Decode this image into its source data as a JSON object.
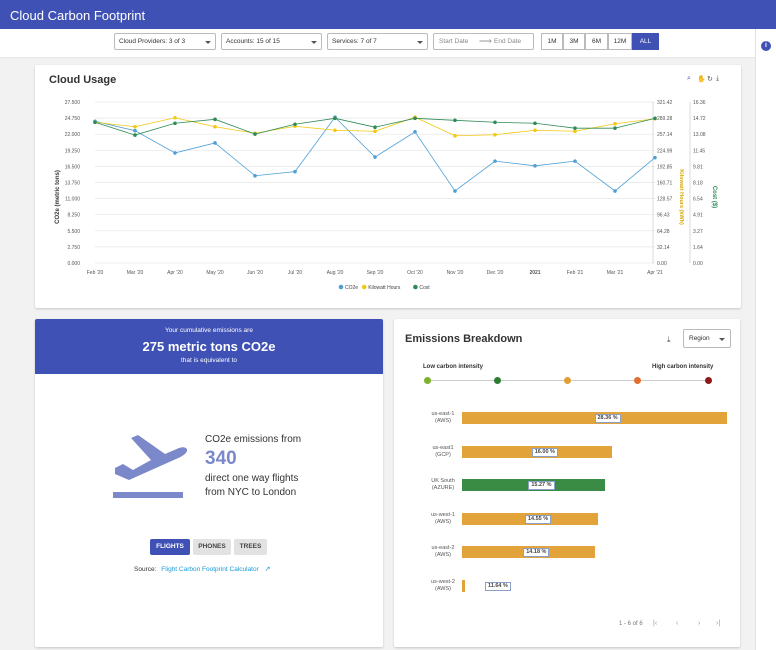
{
  "app": {
    "title": "Cloud Carbon Footprint"
  },
  "filters": {
    "providers": "Cloud Providers: 3 of 3",
    "accounts": "Accounts: 15 of 15",
    "services": "Services: 7 of 7",
    "start_date": "Start Date",
    "end_date": "End Date",
    "ranges": [
      "1M",
      "3M",
      "6M",
      "12M",
      "ALL"
    ],
    "active_range": "ALL"
  },
  "cloud_usage": {
    "title": "Cloud Usage",
    "toolbar_icons": [
      "zoom-icon",
      "pan-icon",
      "reset-icon",
      "download-icon"
    ]
  },
  "chart_data": {
    "type": "line",
    "x": [
      "Feb '20",
      "Mar '20",
      "Apr '20",
      "May '20",
      "Jun '20",
      "Jul '20",
      "Aug '20",
      "Sep '20",
      "Oct '20",
      "Nov '20",
      "Dec '20",
      "2021",
      "Feb '21",
      "Mar '21",
      "Apr '21"
    ],
    "series": [
      {
        "name": "CO2e",
        "color": "#4e9fd6",
        "axis": "left",
        "values": [
          24.2,
          22.6,
          18.8,
          20.5,
          14.9,
          15.6,
          24.9,
          18.1,
          22.4,
          12.3,
          17.4,
          16.6,
          17.4,
          12.3,
          18.0
        ]
      },
      {
        "name": "Kilowatt Hours",
        "color": "#f2c811",
        "axis": "right1",
        "values": [
          281,
          272,
          290,
          272,
          259,
          273,
          265,
          263,
          291,
          254,
          256,
          265,
          263,
          278,
          288
        ]
      },
      {
        "name": "Cost",
        "color": "#2e8b57",
        "axis": "right2",
        "values": [
          14.3,
          13.0,
          14.2,
          14.6,
          13.1,
          14.1,
          14.7,
          13.8,
          14.7,
          14.5,
          14.3,
          14.2,
          13.7,
          13.7,
          14.7
        ]
      }
    ],
    "ylabel": "CO2e (metric tons)",
    "y2label": "Kilowatt Hours (kWh)",
    "y3label": "Cost ($)",
    "yticks": [
      "0.000",
      "2.750",
      "5.500",
      "8.250",
      "11.000",
      "13.750",
      "16.500",
      "19.250",
      "22.000",
      "24.750",
      "27.500"
    ],
    "y2ticks": [
      "0.00",
      "32.14",
      "64.28",
      "96.43",
      "128.57",
      "160.71",
      "192.85",
      "224.99",
      "257.14",
      "289.28",
      "321.42"
    ],
    "y3ticks": [
      "0.00",
      "1.64",
      "3.27",
      "4.91",
      "6.54",
      "8.18",
      "9.81",
      "11.45",
      "13.08",
      "14.72",
      "16.36"
    ],
    "ylim": [
      0,
      27.5
    ],
    "y2lim": [
      0,
      321.42
    ],
    "y3lim": [
      0,
      16.36
    ],
    "grid": true,
    "legend": "bottom"
  },
  "emissions": {
    "line1": "Your cumulative emissions are",
    "amount": "275 metric tons CO2e",
    "line2": "that is equivalent to",
    "equiv_prefix": "CO2e emissions from",
    "equiv_number": "340",
    "equiv_desc1": "direct one way flights",
    "equiv_desc2": "from NYC to London",
    "tabs": [
      "FLIGHTS",
      "PHONES",
      "TREES"
    ],
    "active_tab": "FLIGHTS",
    "source_label": "Source:",
    "source_link": "Flight Carbon Footprint Calculator",
    "icon": "airplane-takeoff-icon"
  },
  "breakdown": {
    "title": "Emissions Breakdown",
    "select_value": "Region",
    "low_label": "Low carbon intensity",
    "high_label": "High carbon intensity",
    "scale_colors": [
      "#7cb32b",
      "#2e7d32",
      "#e0a030",
      "#e07030",
      "#8b1a1a"
    ],
    "rows": [
      {
        "label1": "us-east-1",
        "label2": "(AWS)",
        "pct": "28.36 %",
        "value": 28.36,
        "color": "#e3a33b"
      },
      {
        "label1": "us-east1",
        "label2": "(GCP)",
        "pct": "16.00 %",
        "value": 16.0,
        "color": "#e3a33b"
      },
      {
        "label1": "UK South",
        "label2": "(AZURE)",
        "pct": "15.27 %",
        "value": 15.27,
        "color": "#3a8b44"
      },
      {
        "label1": "us-west-1",
        "label2": "(AWS)",
        "pct": "14.55 %",
        "value": 14.55,
        "color": "#e3a33b"
      },
      {
        "label1": "us-east-2",
        "label2": "(AWS)",
        "pct": "14.18 %",
        "value": 14.18,
        "color": "#e3a33b"
      },
      {
        "label1": "us-west-2",
        "label2": "(AWS)",
        "pct": "11.64 %",
        "value": 11.64,
        "color": "#e3a33b"
      }
    ],
    "pagination": "1 - 6 of 6"
  }
}
